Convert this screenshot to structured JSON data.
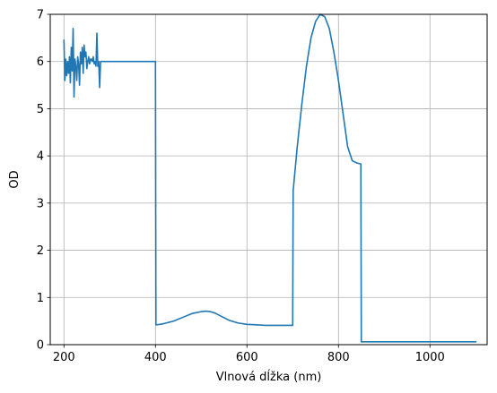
{
  "chart_data": {
    "type": "line",
    "title": "",
    "xlabel": "Vlnová dĺžka (nm)",
    "ylabel": "OD",
    "xlim": [
      170,
      1125
    ],
    "ylim": [
      0,
      7
    ],
    "xticks": [
      200,
      400,
      600,
      800,
      1000
    ],
    "yticks": [
      0,
      1,
      2,
      3,
      4,
      5,
      6,
      7
    ],
    "grid": true,
    "legend": "none",
    "series": [
      {
        "color": "#1f77b4",
        "x": [
          200,
          202,
          204,
          206,
          208,
          210,
          212,
          214,
          216,
          218,
          220,
          222,
          224,
          226,
          228,
          230,
          232,
          234,
          236,
          238,
          240,
          242,
          244,
          246,
          248,
          250,
          252,
          254,
          256,
          258,
          260,
          262,
          264,
          266,
          268,
          270,
          272,
          274,
          276,
          278,
          280,
          282,
          284,
          286,
          288,
          290,
          292,
          294,
          296,
          298,
          300,
          310,
          320,
          340,
          360,
          380,
          399,
          400,
          401,
          410,
          420,
          440,
          460,
          480,
          500,
          510,
          520,
          530,
          540,
          560,
          580,
          600,
          620,
          640,
          660,
          680,
          699,
          700,
          701,
          710,
          720,
          730,
          740,
          750,
          760,
          770,
          780,
          790,
          800,
          810,
          820,
          830,
          840,
          849,
          850,
          851,
          900,
          950,
          1000,
          1050,
          1100
        ],
        "y": [
          6.45,
          5.6,
          6.05,
          5.7,
          6.0,
          5.75,
          6.1,
          5.55,
          6.3,
          5.8,
          6.7,
          5.25,
          6.05,
          5.9,
          5.6,
          6.1,
          5.95,
          5.5,
          6.2,
          5.95,
          6.3,
          5.75,
          6.35,
          6.1,
          6.2,
          5.85,
          6.0,
          6.1,
          5.95,
          6.05,
          6.05,
          6.0,
          6.1,
          5.95,
          6.0,
          5.9,
          6.6,
          5.9,
          6.0,
          5.45,
          6.0,
          6.0,
          6.0,
          6.0,
          6.0,
          6.0,
          6.0,
          6.0,
          6.0,
          6.0,
          6.0,
          6.0,
          6.0,
          6.0,
          6.0,
          6.0,
          6.0,
          6.0,
          0.42,
          0.43,
          0.45,
          0.5,
          0.58,
          0.66,
          0.7,
          0.71,
          0.7,
          0.67,
          0.62,
          0.52,
          0.46,
          0.43,
          0.42,
          0.41,
          0.41,
          0.41,
          0.41,
          0.41,
          3.26,
          4.2,
          5.1,
          5.9,
          6.5,
          6.85,
          7.0,
          6.95,
          6.7,
          6.2,
          5.6,
          4.9,
          4.2,
          3.9,
          3.85,
          3.83,
          0.06,
          0.06,
          0.06,
          0.06,
          0.06,
          0.06,
          0.06
        ]
      }
    ]
  }
}
